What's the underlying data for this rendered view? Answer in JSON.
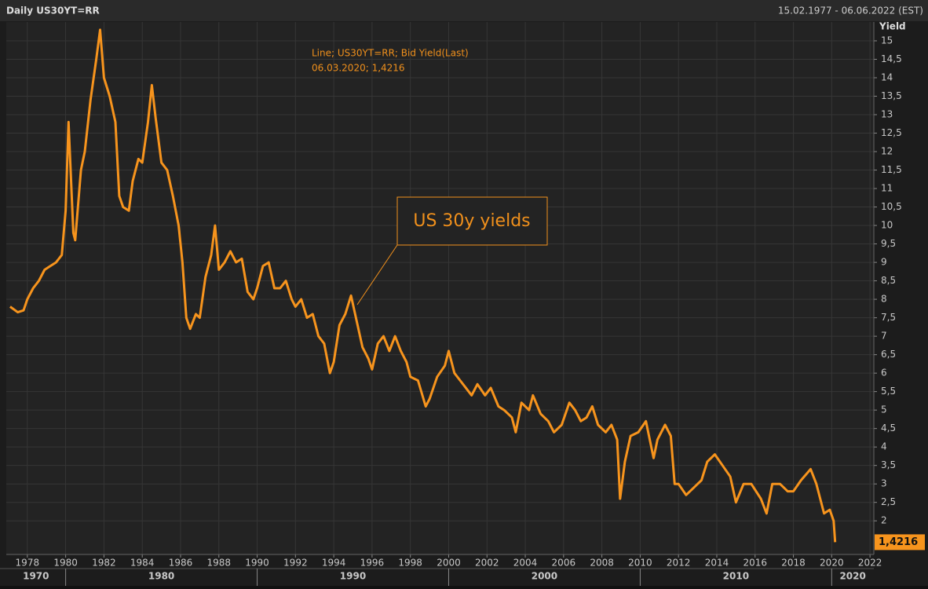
{
  "chart_data": {
    "type": "line",
    "title": "Daily US30YT=RR",
    "date_range": "15.02.1977 - 06.06.2022 (EST)",
    "y_axis_label": "Yield",
    "legend_line1": "Line; US30YT=RR; Bid Yield(Last)",
    "legend_line2": "06.03.2020; 1,4216",
    "annotation": "US 30y yields",
    "end_label": "1,4216",
    "xlim": [
      1976.9,
      2022.2
    ],
    "xticks": [
      1978,
      1980,
      1982,
      1984,
      1986,
      1988,
      1990,
      1992,
      1994,
      1996,
      1998,
      2000,
      2002,
      2004,
      2006,
      2008,
      2010,
      2012,
      2014,
      2016,
      2018,
      2020,
      2022
    ],
    "decades": [
      1970,
      1980,
      1990,
      2000,
      2010,
      2020
    ],
    "ylim": [
      1.09,
      15.51
    ],
    "yticks": [
      {
        "value": 2,
        "label": "2"
      },
      {
        "value": 2.5,
        "label": "2,5"
      },
      {
        "value": 3,
        "label": "3"
      },
      {
        "value": 3.5,
        "label": "3,5"
      },
      {
        "value": 4,
        "label": "4"
      },
      {
        "value": 4.5,
        "label": "4,5"
      },
      {
        "value": 5,
        "label": "5"
      },
      {
        "value": 5.5,
        "label": "5,5"
      },
      {
        "value": 6,
        "label": "6"
      },
      {
        "value": 6.5,
        "label": "6,5"
      },
      {
        "value": 7,
        "label": "7"
      },
      {
        "value": 7.5,
        "label": "7,5"
      },
      {
        "value": 8,
        "label": "8"
      },
      {
        "value": 8.5,
        "label": "8,5"
      },
      {
        "value": 9,
        "label": "9"
      },
      {
        "value": 9.5,
        "label": "9,5"
      },
      {
        "value": 10,
        "label": "10"
      },
      {
        "value": 10.5,
        "label": "10,5"
      },
      {
        "value": 11,
        "label": "11"
      },
      {
        "value": 11.5,
        "label": "11,5"
      },
      {
        "value": 12,
        "label": "12"
      },
      {
        "value": 12.5,
        "label": "12,5"
      },
      {
        "value": 13,
        "label": "13"
      },
      {
        "value": 13.5,
        "label": "13,5"
      },
      {
        "value": 14,
        "label": "14"
      },
      {
        "value": 14.5,
        "label": "14,5"
      },
      {
        "value": 15,
        "label": "15"
      }
    ],
    "grid": true,
    "x": [
      1977.1,
      1977.5,
      1977.8,
      1978.0,
      1978.3,
      1978.6,
      1978.9,
      1979.2,
      1979.5,
      1979.8,
      1980.0,
      1980.15,
      1980.4,
      1980.5,
      1980.8,
      1981.0,
      1981.3,
      1981.6,
      1981.8,
      1982.0,
      1982.3,
      1982.6,
      1982.8,
      1983.0,
      1983.3,
      1983.5,
      1983.8,
      1984.0,
      1984.3,
      1984.5,
      1984.7,
      1985.0,
      1985.3,
      1985.6,
      1985.9,
      1986.1,
      1986.3,
      1986.5,
      1986.8,
      1987.0,
      1987.3,
      1987.6,
      1987.8,
      1988.0,
      1988.3,
      1988.6,
      1988.9,
      1989.2,
      1989.5,
      1989.8,
      1990.0,
      1990.3,
      1990.6,
      1990.9,
      1991.2,
      1991.5,
      1991.8,
      1992.0,
      1992.3,
      1992.6,
      1992.9,
      1993.2,
      1993.5,
      1993.8,
      1994.0,
      1994.3,
      1994.6,
      1994.9,
      1995.2,
      1995.5,
      1995.8,
      1996.0,
      1996.3,
      1996.6,
      1996.9,
      1997.2,
      1997.5,
      1997.8,
      1998.0,
      1998.4,
      1998.8,
      1999.0,
      1999.4,
      1999.8,
      2000.0,
      2000.3,
      2000.6,
      2000.9,
      2001.2,
      2001.5,
      2001.9,
      2002.2,
      2002.6,
      2002.9,
      2003.3,
      2003.5,
      2003.8,
      2004.2,
      2004.4,
      2004.8,
      2005.2,
      2005.5,
      2005.9,
      2006.3,
      2006.6,
      2006.9,
      2007.2,
      2007.5,
      2007.8,
      2008.2,
      2008.5,
      2008.8,
      2008.95,
      2009.2,
      2009.5,
      2009.9,
      2010.3,
      2010.7,
      2010.9,
      2011.3,
      2011.6,
      2011.8,
      2012.0,
      2012.4,
      2012.8,
      2013.2,
      2013.5,
      2013.9,
      2014.3,
      2014.7,
      2015.0,
      2015.4,
      2015.8,
      2016.3,
      2016.6,
      2016.9,
      2017.3,
      2017.7,
      2018.0,
      2018.4,
      2018.9,
      2019.2,
      2019.6,
      2019.9,
      2020.1,
      2020.18
    ],
    "series": [
      {
        "name": "US30YT=RR",
        "color": "#f7941d",
        "values": [
          7.8,
          7.65,
          7.7,
          8.0,
          8.3,
          8.5,
          8.8,
          8.9,
          9.0,
          9.2,
          10.4,
          12.8,
          9.8,
          9.6,
          11.5,
          12.0,
          13.4,
          14.5,
          15.3,
          14.0,
          13.5,
          12.8,
          10.8,
          10.5,
          10.4,
          11.2,
          11.8,
          11.7,
          12.8,
          13.8,
          12.9,
          11.7,
          11.5,
          10.8,
          10.0,
          9.0,
          7.5,
          7.2,
          7.6,
          7.5,
          8.6,
          9.2,
          10.0,
          8.8,
          9.0,
          9.3,
          9.0,
          9.1,
          8.2,
          8.0,
          8.3,
          8.9,
          9.0,
          8.3,
          8.3,
          8.5,
          8.0,
          7.8,
          8.0,
          7.5,
          7.6,
          7.0,
          6.8,
          6.0,
          6.3,
          7.3,
          7.6,
          8.1,
          7.4,
          6.7,
          6.4,
          6.1,
          6.8,
          7.0,
          6.6,
          7.0,
          6.6,
          6.3,
          5.9,
          5.8,
          5.1,
          5.3,
          5.9,
          6.2,
          6.6,
          6.0,
          5.8,
          5.6,
          5.4,
          5.7,
          5.4,
          5.6,
          5.1,
          5.0,
          4.8,
          4.4,
          5.2,
          5.0,
          5.4,
          4.9,
          4.7,
          4.4,
          4.6,
          5.2,
          5.0,
          4.7,
          4.8,
          5.1,
          4.6,
          4.4,
          4.6,
          4.2,
          2.6,
          3.6,
          4.3,
          4.4,
          4.7,
          3.7,
          4.2,
          4.6,
          4.3,
          3.0,
          3.0,
          2.7,
          2.9,
          3.1,
          3.6,
          3.8,
          3.5,
          3.2,
          2.5,
          3.0,
          3.0,
          2.6,
          2.2,
          3.0,
          3.0,
          2.8,
          2.8,
          3.1,
          3.4,
          3.0,
          2.2,
          2.3,
          2.0,
          1.4216
        ]
      }
    ]
  }
}
